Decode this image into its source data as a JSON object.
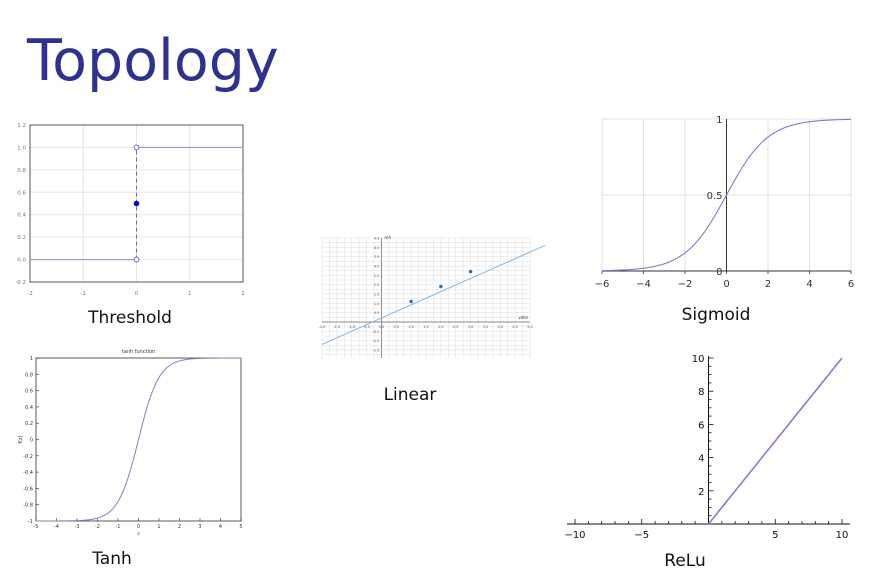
{
  "slide": {
    "title": "Topology"
  },
  "colors": {
    "title": "#2e3192",
    "curve": "#7b7ed4",
    "linear_line": "#7fb3e0",
    "point": "#0000cc",
    "grid": "#dddddd"
  },
  "chart_data": [
    {
      "id": "threshold",
      "type": "line",
      "caption": "Threshold",
      "xlim": [
        -2,
        2
      ],
      "ylim": [
        -0.2,
        1.2
      ],
      "xticks": [
        "-2",
        "-1",
        "0",
        "1",
        "2"
      ],
      "yticks": [
        "-0.2",
        "0.0",
        "0.2",
        "0.4",
        "0.6",
        "0.8",
        "1.0",
        "1.2"
      ],
      "grid": true,
      "series": [
        {
          "x": [
            -2,
            0
          ],
          "y": [
            0,
            0
          ]
        },
        {
          "x": [
            0,
            2
          ],
          "y": [
            1,
            1
          ]
        }
      ],
      "open_points": [
        [
          0,
          0
        ],
        [
          0,
          1
        ]
      ],
      "filled_points": [
        [
          0,
          0.5
        ]
      ]
    },
    {
      "id": "tanh",
      "type": "line",
      "caption": "Tanh",
      "title": "tanh function",
      "xlabel": "z",
      "ylabel": "f(z)",
      "xlim": [
        -5,
        5
      ],
      "ylim": [
        -1,
        1
      ],
      "xticks": [
        "-5",
        "-4",
        "-3",
        "-2",
        "-1",
        "0",
        "1",
        "2",
        "3",
        "4",
        "5"
      ],
      "yticks": [
        "-1",
        "-0.8",
        "-0.6",
        "-0.4",
        "-0.2",
        "0",
        "0.2",
        "0.4",
        "0.6",
        "0.8",
        "1"
      ],
      "grid": false,
      "function": "tanh"
    },
    {
      "id": "linear",
      "type": "line",
      "caption": "Linear",
      "xlabel": "volts",
      "ylabel": "mA",
      "xlim": [
        -2.0,
        5.0
      ],
      "ylim": [
        -1.5,
        4.5
      ],
      "xticks": [
        "-2.0",
        "-1.5",
        "-1.0",
        "-0.5",
        "0.0",
        "0.5",
        "1.0",
        "1.5",
        "2.0",
        "2.5",
        "3.0",
        "3.5",
        "4.0",
        "4.5",
        "5.0"
      ],
      "yticks": [
        "-1.5",
        "-1.0",
        "-0.5",
        "0.0",
        "0.5",
        "1.0",
        "1.5",
        "2.0",
        "2.5",
        "3.0",
        "3.5",
        "4.0",
        "4.5"
      ],
      "grid": true,
      "line": {
        "x": [
          -2.0,
          5.5
        ],
        "y": [
          -1.2,
          4.1
        ]
      },
      "points": [
        {
          "x": 1.0,
          "y": 1.1
        },
        {
          "x": 2.0,
          "y": 1.9
        },
        {
          "x": 3.0,
          "y": 2.7
        }
      ]
    },
    {
      "id": "sigmoid",
      "type": "line",
      "caption": "Sigmoid",
      "xlim": [
        -6,
        6
      ],
      "ylim": [
        0,
        1
      ],
      "xticks": [
        "−6",
        "−4",
        "−2",
        "0",
        "2",
        "4",
        "6"
      ],
      "yticks": [
        "0",
        "0.5",
        "1"
      ],
      "grid": true,
      "function": "sigmoid"
    },
    {
      "id": "relu",
      "type": "line",
      "caption": "ReLu",
      "xlim": [
        -10,
        10
      ],
      "ylim": [
        0,
        10
      ],
      "xticks": [
        "−10",
        "−5",
        "5",
        "10"
      ],
      "yticks": [
        "2",
        "4",
        "6",
        "8",
        "10"
      ],
      "grid": false,
      "series": [
        {
          "x": [
            0,
            10
          ],
          "y": [
            0,
            10
          ]
        }
      ]
    }
  ]
}
